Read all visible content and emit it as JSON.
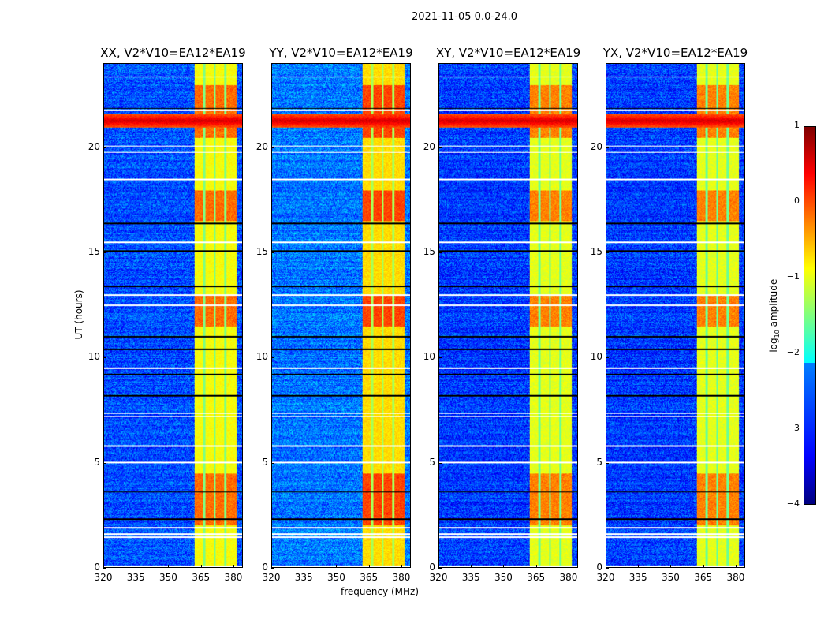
{
  "chart_data": {
    "type": "heatmap",
    "title": "2021-11-05 0.0-24.0",
    "xlabel": "frequency (MHz)",
    "ylabel": "UT (hours)",
    "xlim": [
      320,
      384.4
    ],
    "ylim": [
      0,
      24
    ],
    "xticks": [
      "320",
      "335",
      "350",
      "365",
      "380"
    ],
    "yticks": [
      "0",
      "5",
      "10",
      "15",
      "20"
    ],
    "panels": [
      {
        "title": "XX, V2*V10=EA12*EA19",
        "background_log_amp": -3.0,
        "band_log_amp": -0.9
      },
      {
        "title": "YY, V2*V10=EA12*EA19",
        "background_log_amp": -2.8,
        "band_log_amp": -0.7
      },
      {
        "title": "XY, V2*V10=EA12*EA19",
        "background_log_amp": -3.1,
        "band_log_amp": -1.0
      },
      {
        "title": "YX, V2*V10=EA12*EA19",
        "background_log_amp": -3.1,
        "band_log_amp": -1.0
      }
    ],
    "band": {
      "freq_range_mhz": [
        362,
        381.8
      ],
      "gap_freqs_mhz": [
        366.5,
        371.5,
        376.5
      ]
    },
    "rfi_event": {
      "time_range_h": [
        21.0,
        21.6
      ],
      "log_amp": 0.6
    },
    "flagged_times_h": [
      0.05,
      1.45,
      1.6,
      1.9,
      5.0,
      5.8,
      7.2,
      7.35,
      9.5,
      12.5,
      13.0,
      15.5,
      18.5,
      19.8,
      20.1,
      21.8,
      23.4
    ],
    "dark_times_h": [
      2.3,
      3.6,
      8.2,
      9.2,
      10.4,
      11.0,
      13.4,
      15.1,
      16.4,
      21.9
    ],
    "colorbar": {
      "label": "log10 amplitude",
      "label_main": "log",
      "label_sub": "10",
      "label_rest": " amplitude",
      "range": [
        -4,
        1
      ],
      "ticks": [
        "1",
        "0",
        "−1",
        "−2",
        "−3",
        "−4"
      ]
    }
  }
}
